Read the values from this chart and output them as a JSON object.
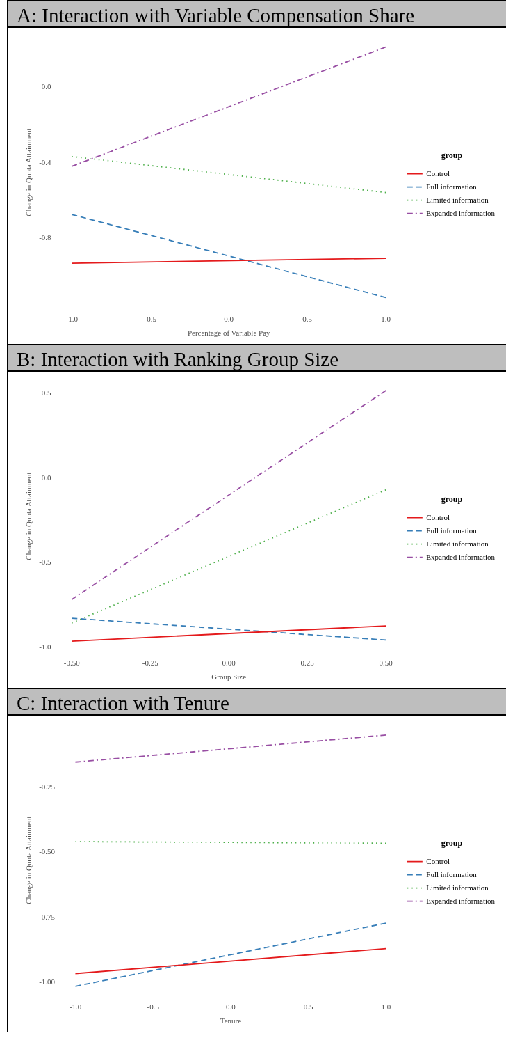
{
  "chart_data": [
    {
      "type": "line",
      "title": "A: Interaction with Variable Compensation Share",
      "xlabel": "Percentage of Variable Pay",
      "ylabel": "Change in Quota Attainment",
      "legend_title": "group",
      "legend": "right",
      "grid": false,
      "marker": "none",
      "xlim": [
        -1.1,
        1.1
      ],
      "xticks": [
        {
          "value": -1,
          "label": "-1.0"
        },
        {
          "value": -0.5,
          "label": "-0.5"
        },
        {
          "value": 0,
          "label": "0.0"
        },
        {
          "value": 0.5,
          "label": "0.5"
        },
        {
          "value": 1,
          "label": "1.0"
        }
      ],
      "ylim": [
        -1.18,
        0.28
      ],
      "yticks": [
        {
          "value": -0.8,
          "label": "-0.8"
        },
        {
          "value": -0.4,
          "label": "-0.4"
        },
        {
          "value": 0,
          "label": "0.0"
        }
      ],
      "series": [
        {
          "name": "Control",
          "color": "#e41a1c",
          "line_style": "solid",
          "x": [
            -1,
            1
          ],
          "values": [
            -0.931,
            -0.905
          ]
        },
        {
          "name": "Full information",
          "color": "#377eb8",
          "line_style": "dashed",
          "x": [
            -1,
            1
          ],
          "values": [
            -0.673,
            -1.113
          ]
        },
        {
          "name": "Limited information",
          "color": "#4daf4a",
          "line_style": "dotted",
          "x": [
            -1,
            1
          ],
          "values": [
            -0.366,
            -0.557
          ]
        },
        {
          "name": "Expanded information",
          "color": "#984ea3",
          "line_style": "dashdot",
          "x": [
            -1,
            1
          ],
          "values": [
            -0.418,
            0.214
          ]
        }
      ]
    },
    {
      "type": "line",
      "title": "B: Interaction with Ranking Group Size",
      "xlabel": "Group Size",
      "ylabel": "Change in Quota Attainment",
      "legend_title": "group",
      "legend": "right",
      "grid": false,
      "marker": "none",
      "xlim": [
        -0.55,
        0.55
      ],
      "xticks": [
        {
          "value": -0.5,
          "label": "-0.50"
        },
        {
          "value": -0.25,
          "label": "-0.25"
        },
        {
          "value": 0,
          "label": "0.00"
        },
        {
          "value": 0.25,
          "label": "0.25"
        },
        {
          "value": 0.5,
          "label": "0.50"
        }
      ],
      "ylim": [
        -1.04,
        0.59
      ],
      "yticks": [
        {
          "value": -1,
          "label": "-1.0"
        },
        {
          "value": -0.5,
          "label": "-0.5"
        },
        {
          "value": 0,
          "label": "0.0"
        },
        {
          "value": 0.5,
          "label": "0.5"
        }
      ],
      "series": [
        {
          "name": "Control",
          "color": "#e41a1c",
          "line_style": "solid",
          "x": [
            -0.5,
            0.5
          ],
          "values": [
            -0.964,
            -0.873
          ]
        },
        {
          "name": "Full information",
          "color": "#377eb8",
          "line_style": "dashed",
          "x": [
            -0.5,
            0.5
          ],
          "values": [
            -0.828,
            -0.957
          ]
        },
        {
          "name": "Limited information",
          "color": "#4daf4a",
          "line_style": "dotted",
          "x": [
            -0.5,
            0.5
          ],
          "values": [
            -0.856,
            -0.069
          ]
        },
        {
          "name": "Expanded information",
          "color": "#984ea3",
          "line_style": "dashdot",
          "x": [
            -0.5,
            0.5
          ],
          "values": [
            -0.717,
            0.518
          ]
        }
      ]
    },
    {
      "type": "line",
      "title": "C: Interaction with Tenure",
      "xlabel": "Tenure",
      "ylabel": "Change in Quota Attainment",
      "legend_title": "group",
      "legend": "right",
      "grid": false,
      "marker": "none",
      "xlim": [
        -1.1,
        1.1
      ],
      "xticks": [
        {
          "value": -1,
          "label": "-1.0"
        },
        {
          "value": -0.5,
          "label": "-0.5"
        },
        {
          "value": 0,
          "label": "0.0"
        },
        {
          "value": 0.5,
          "label": "0.5"
        },
        {
          "value": 1,
          "label": "1.0"
        }
      ],
      "ylim": [
        -1.06,
        0.0
      ],
      "yticks": [
        {
          "value": -1,
          "label": "-1.00"
        },
        {
          "value": -0.75,
          "label": "-0.75"
        },
        {
          "value": -0.5,
          "label": "-0.50"
        },
        {
          "value": -0.25,
          "label": "-0.25"
        }
      ],
      "series": [
        {
          "name": "Control",
          "color": "#e41a1c",
          "line_style": "solid",
          "x": [
            -1,
            1
          ],
          "values": [
            -0.966,
            -0.87
          ]
        },
        {
          "name": "Full information",
          "color": "#377eb8",
          "line_style": "dashed",
          "x": [
            -1,
            1
          ],
          "values": [
            -1.015,
            -0.772
          ]
        },
        {
          "name": "Limited information",
          "color": "#4daf4a",
          "line_style": "dotted",
          "x": [
            -1,
            1
          ],
          "values": [
            -0.459,
            -0.465
          ]
        },
        {
          "name": "Expanded information",
          "color": "#984ea3",
          "line_style": "dashdot",
          "x": [
            -1,
            1
          ],
          "values": [
            -0.153,
            -0.049
          ]
        }
      ]
    }
  ]
}
